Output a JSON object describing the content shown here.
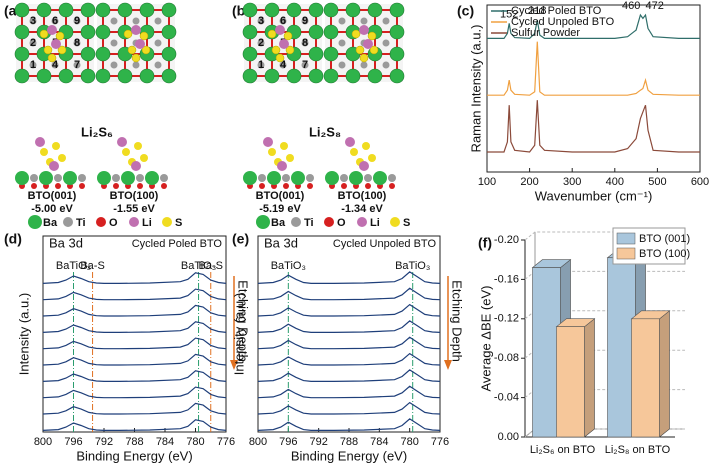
{
  "panels": [
    {
      "label": "(a)",
      "sites": [
        1,
        2,
        3,
        4,
        5,
        6,
        7,
        8,
        9
      ],
      "molecule": "Li₂S₆",
      "structures": [
        {
          "name": "BTO(001)",
          "energy": "-5.00 eV"
        },
        {
          "name": "BTO(100)",
          "energy": "-1.55 eV"
        }
      ],
      "legend": [
        {
          "name": "Ba",
          "color": "#2fb34a"
        },
        {
          "name": "Ti",
          "color": "#9a9a9a"
        },
        {
          "name": "O",
          "color": "#d62020"
        },
        {
          "name": "Li",
          "color": "#c070b0"
        },
        {
          "name": "S",
          "color": "#f0dc20"
        }
      ]
    },
    {
      "label": "(b)",
      "sites": [
        1,
        2,
        3,
        4,
        5,
        6,
        7,
        8,
        9
      ],
      "molecule": "Li₂S₈",
      "structures": [
        {
          "name": "BTO(001)",
          "energy": "-5.19 eV"
        },
        {
          "name": "BTO(100)",
          "energy": "-1.34 eV"
        }
      ],
      "legend": [
        {
          "name": "Ba",
          "color": "#2fb34a"
        },
        {
          "name": "Ti",
          "color": "#9a9a9a"
        },
        {
          "name": "O",
          "color": "#d62020"
        },
        {
          "name": "Li",
          "color": "#c070b0"
        },
        {
          "name": "S",
          "color": "#f0dc20"
        }
      ]
    }
  ],
  "chart_data": [
    {
      "type": "line",
      "label": "(c)",
      "xlabel": "Wavenumber (cm⁻¹)",
      "ylabel": "Raman Intensity (a.u.)",
      "x": [
        100,
        140,
        148,
        152,
        156,
        165,
        200,
        212,
        218,
        224,
        235,
        300,
        400,
        430,
        450,
        460,
        466,
        472,
        478,
        490,
        550,
        600
      ],
      "series": [
        {
          "name": "Cycled Poled BTO",
          "color": "#2f6e6a",
          "values": [
            8.0,
            8.0,
            8.3,
            8.9,
            8.3,
            8.05,
            8.0,
            8.3,
            9.1,
            8.2,
            8.0,
            8.0,
            8.0,
            8.1,
            8.5,
            9.4,
            9.2,
            9.4,
            8.6,
            8.1,
            8.0,
            8.0
          ]
        },
        {
          "name": "Cycled Unpoled BTO",
          "color": "#f0a040",
          "values": [
            4.6,
            4.6,
            4.9,
            5.5,
            4.9,
            4.65,
            4.6,
            4.8,
            7.8,
            4.8,
            4.6,
            4.6,
            4.6,
            4.6,
            4.7,
            4.9,
            5.0,
            5.5,
            4.9,
            4.65,
            4.6,
            4.6
          ]
        },
        {
          "name": "Sulfur Powder",
          "color": "#8b4a3a",
          "values": [
            1.2,
            1.2,
            1.8,
            4.0,
            1.8,
            1.3,
            1.2,
            1.6,
            4.3,
            1.6,
            1.3,
            1.2,
            1.2,
            1.4,
            2.0,
            3.2,
            3.6,
            4.0,
            2.5,
            1.3,
            1.2,
            1.2
          ]
        }
      ],
      "xlim": [
        100,
        600
      ],
      "xticks": [
        100,
        200,
        300,
        400,
        500,
        600
      ],
      "ylim": [
        0,
        10
      ],
      "legend": "upper left",
      "annotations": [
        {
          "text": "152",
          "x": 152
        },
        {
          "text": "218",
          "x": 218
        },
        {
          "text": "460",
          "x": 460
        },
        {
          "text": "472",
          "x": 472
        }
      ]
    },
    {
      "type": "line",
      "label": "(d)",
      "core": "Ba 3d",
      "title": "Cycled Poled BTO",
      "xlabel": "Binding Energy (eV)",
      "ylabel": "Intensity (a.u.)",
      "arrow": "Etching Depth",
      "x": [
        800,
        798,
        797,
        796,
        795,
        794,
        793,
        792,
        790,
        786,
        782,
        781,
        780,
        779,
        778,
        777,
        776
      ],
      "series": [
        {
          "color": "#1f3f7a",
          "values": [
            0.1,
            0.15,
            0.3,
            0.55,
            0.4,
            0.2,
            0.12,
            0.1,
            0.1,
            0.12,
            0.2,
            0.35,
            0.75,
            0.65,
            0.3,
            0.15,
            0.1
          ]
        },
        {
          "color": "#1f3f7a",
          "values": [
            1.1,
            1.15,
            1.3,
            1.55,
            1.4,
            1.2,
            1.12,
            1.1,
            1.1,
            1.12,
            1.2,
            1.35,
            1.75,
            1.65,
            1.3,
            1.15,
            1.1
          ]
        },
        {
          "color": "#1f3f7a",
          "values": [
            2.1,
            2.15,
            2.3,
            2.55,
            2.4,
            2.2,
            2.12,
            2.1,
            2.1,
            2.12,
            2.2,
            2.35,
            2.75,
            2.65,
            2.3,
            2.15,
            2.1
          ]
        },
        {
          "color": "#1f3f7a",
          "values": [
            3.1,
            3.15,
            3.3,
            3.55,
            3.4,
            3.2,
            3.12,
            3.1,
            3.1,
            3.12,
            3.2,
            3.35,
            3.75,
            3.65,
            3.3,
            3.15,
            3.1
          ]
        },
        {
          "color": "#1f3f7a",
          "values": [
            4.1,
            4.15,
            4.3,
            4.55,
            4.4,
            4.2,
            4.12,
            4.1,
            4.1,
            4.12,
            4.2,
            4.35,
            4.75,
            4.65,
            4.3,
            4.15,
            4.1
          ]
        },
        {
          "color": "#1f3f7a",
          "values": [
            5.1,
            5.15,
            5.3,
            5.55,
            5.4,
            5.2,
            5.12,
            5.1,
            5.1,
            5.12,
            5.2,
            5.35,
            5.75,
            5.65,
            5.3,
            5.15,
            5.1
          ]
        },
        {
          "color": "#1f3f7a",
          "values": [
            6.1,
            6.15,
            6.3,
            6.55,
            6.4,
            6.2,
            6.12,
            6.1,
            6.1,
            6.12,
            6.2,
            6.35,
            6.75,
            6.65,
            6.3,
            6.15,
            6.1
          ]
        },
        {
          "color": "#1f3f7a",
          "values": [
            7.1,
            7.15,
            7.3,
            7.55,
            7.4,
            7.2,
            7.12,
            7.1,
            7.1,
            7.12,
            7.2,
            7.35,
            7.75,
            7.65,
            7.3,
            7.15,
            7.1
          ]
        },
        {
          "color": "#1f3f7a",
          "values": [
            8.1,
            8.15,
            8.3,
            8.55,
            8.4,
            8.2,
            8.12,
            8.1,
            8.1,
            8.12,
            8.2,
            8.35,
            8.75,
            8.65,
            8.3,
            8.15,
            8.1
          ]
        },
        {
          "color": "#1f3f7a",
          "values": [
            9.1,
            9.15,
            9.3,
            9.55,
            9.4,
            9.2,
            9.12,
            9.1,
            9.1,
            9.12,
            9.2,
            9.35,
            9.75,
            9.65,
            9.3,
            9.15,
            9.1
          ]
        }
      ],
      "xlim": [
        800,
        776
      ],
      "xticks": [
        800,
        796,
        792,
        788,
        784,
        780,
        776
      ],
      "ylim": [
        0,
        12
      ],
      "annotations": [
        {
          "text": "BaTiO₃",
          "x": 796,
          "color": "#2a9d6e"
        },
        {
          "text": "Ba-S",
          "x": 793.5,
          "color": "#e07020"
        },
        {
          "text": "BaTiO₃",
          "x": 779.6,
          "color": "#2a9d6e"
        },
        {
          "text": "Ba-S",
          "x": 778,
          "color": "#e07020"
        }
      ]
    },
    {
      "type": "line",
      "label": "(e)",
      "core": "Ba 3d",
      "title": "Cycled Unpoled BTO",
      "xlabel": "Binding Energy (eV)",
      "ylabel": "Intensity (a.u.)",
      "arrow": "Etching Depth",
      "x": [
        800,
        798,
        797,
        796,
        795,
        794,
        793,
        792,
        790,
        786,
        782,
        781,
        780,
        779,
        778,
        777,
        776
      ],
      "series": [
        {
          "color": "#1f3f7a",
          "values": [
            0.1,
            0.15,
            0.3,
            0.6,
            0.35,
            0.15,
            0.1,
            0.1,
            0.1,
            0.12,
            0.2,
            0.4,
            0.8,
            0.5,
            0.2,
            0.12,
            0.1
          ]
        },
        {
          "color": "#1f3f7a",
          "values": [
            1.1,
            1.15,
            1.3,
            1.6,
            1.35,
            1.15,
            1.1,
            1.1,
            1.1,
            1.12,
            1.2,
            1.4,
            1.8,
            1.5,
            1.2,
            1.12,
            1.1
          ]
        },
        {
          "color": "#1f3f7a",
          "values": [
            2.1,
            2.15,
            2.3,
            2.6,
            2.35,
            2.15,
            2.1,
            2.1,
            2.1,
            2.12,
            2.2,
            2.4,
            2.8,
            2.5,
            2.2,
            2.12,
            2.1
          ]
        },
        {
          "color": "#1f3f7a",
          "values": [
            3.1,
            3.15,
            3.3,
            3.6,
            3.35,
            3.15,
            3.1,
            3.1,
            3.1,
            3.12,
            3.2,
            3.4,
            3.8,
            3.5,
            3.2,
            3.12,
            3.1
          ]
        },
        {
          "color": "#1f3f7a",
          "values": [
            4.1,
            4.15,
            4.3,
            4.6,
            4.35,
            4.15,
            4.1,
            4.1,
            4.1,
            4.12,
            4.2,
            4.4,
            4.8,
            4.5,
            4.2,
            4.12,
            4.1
          ]
        },
        {
          "color": "#1f3f7a",
          "values": [
            5.1,
            5.15,
            5.3,
            5.6,
            5.35,
            5.15,
            5.1,
            5.1,
            5.1,
            5.12,
            5.2,
            5.4,
            5.8,
            5.5,
            5.2,
            5.12,
            5.1
          ]
        },
        {
          "color": "#1f3f7a",
          "values": [
            6.1,
            6.15,
            6.3,
            6.6,
            6.35,
            6.15,
            6.1,
            6.1,
            6.1,
            6.12,
            6.2,
            6.4,
            6.8,
            6.5,
            6.2,
            6.12,
            6.1
          ]
        },
        {
          "color": "#1f3f7a",
          "values": [
            7.1,
            7.15,
            7.3,
            7.6,
            7.35,
            7.15,
            7.1,
            7.1,
            7.1,
            7.12,
            7.2,
            7.4,
            7.8,
            7.5,
            7.2,
            7.12,
            7.1
          ]
        },
        {
          "color": "#1f3f7a",
          "values": [
            8.1,
            8.15,
            8.3,
            8.6,
            8.35,
            8.15,
            8.1,
            8.1,
            8.1,
            8.12,
            8.2,
            8.4,
            8.8,
            8.5,
            8.2,
            8.12,
            8.1
          ]
        },
        {
          "color": "#1f3f7a",
          "values": [
            9.1,
            9.15,
            9.3,
            9.6,
            9.35,
            9.15,
            9.1,
            9.1,
            9.1,
            9.12,
            9.2,
            9.4,
            9.8,
            9.5,
            9.2,
            9.12,
            9.1
          ]
        }
      ],
      "xlim": [
        800,
        776
      ],
      "xticks": [
        800,
        796,
        792,
        788,
        784,
        780,
        776
      ],
      "ylim": [
        0,
        12
      ],
      "annotations": [
        {
          "text": "BaTiO₃",
          "x": 796,
          "color": "#2a9d6e"
        },
        {
          "text": "BaTiO₃",
          "x": 779.6,
          "color": "#2a9d6e"
        }
      ]
    },
    {
      "type": "bar3d",
      "label": "(f)",
      "ylabel": "Average ΔBE (eV)",
      "categories": [
        "Li₂S₆ on BTO",
        "Li₂S₈ on BTO"
      ],
      "series": [
        {
          "name": "BTO (001)",
          "color": "#a9c6dc",
          "values": [
            -0.172,
            -0.182
          ]
        },
        {
          "name": "BTO (100)",
          "color": "#f6c79a",
          "values": [
            -0.112,
            -0.12
          ]
        }
      ],
      "ylim": [
        0,
        -0.2
      ],
      "yticks": [
        {
          "value": 0,
          "label": "0.00"
        },
        -0.04,
        -0.08,
        -0.12,
        -0.16,
        {
          "value": -0.2,
          "label": "-0.20"
        }
      ],
      "grid": true,
      "legend": "upper right"
    }
  ]
}
